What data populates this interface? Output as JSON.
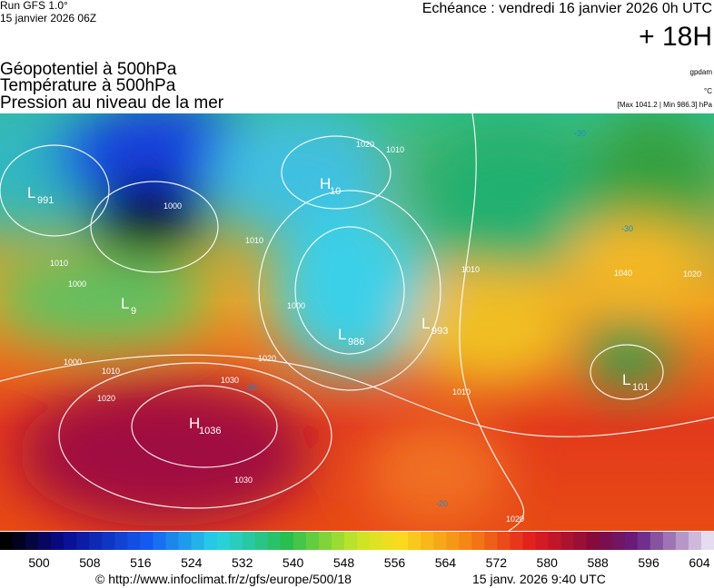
{
  "header": {
    "run": "Run GFS 1.0°",
    "run_date": "15 janvier 2026 06Z",
    "valid": "Echéance : vendredi 16 janvier 2026 0h UTC",
    "lead": "+ 18H",
    "fields": [
      "Géopotentiel à 500hPa",
      "Température à 500hPa",
      "Pression au niveau de la mer"
    ],
    "units": [
      "gpdam",
      "°C",
      "[Max 1041.2 | Min 986.3] hPa"
    ]
  },
  "map": {
    "centers": [
      {
        "letter": "L",
        "value": "991"
      },
      {
        "letter": "H",
        "value": "10"
      },
      {
        "letter": "L",
        "value": "9"
      },
      {
        "letter": "L",
        "value": "986"
      },
      {
        "letter": "L",
        "value": "993"
      },
      {
        "letter": "H",
        "value": "1036"
      },
      {
        "letter": "L",
        "value": "101"
      }
    ],
    "isobar_labels": [
      1000,
      1010,
      1000,
      1020,
      1010,
      1010,
      1000,
      1010,
      1000,
      1010,
      1020,
      1030,
      1030,
      1020,
      1010,
      1040,
      1020,
      1020
    ],
    "temperature_labels": [
      -30,
      -30,
      -20,
      -20
    ]
  },
  "legend": {
    "ticks": [
      500,
      508,
      516,
      524,
      532,
      540,
      548,
      556,
      564,
      572,
      580,
      588,
      596,
      604
    ]
  },
  "footer": {
    "url": "© http://www.infoclimat.fr/z/gfs/europe/500/18",
    "time": "15 janv. 2026  9:40 UTC"
  }
}
